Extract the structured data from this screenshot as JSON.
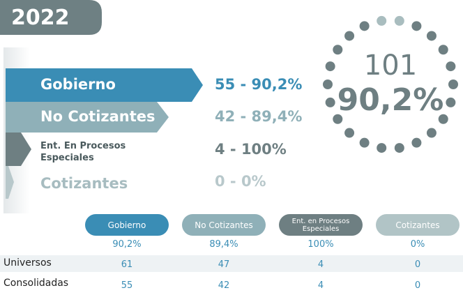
{
  "year": "2022",
  "categories": [
    {
      "label": "Gobierno",
      "value_text": "55 - 90,2%"
    },
    {
      "label": "No Cotizantes",
      "value_text": "42 - 89,4%"
    },
    {
      "label": "Ent. En Procesos Especiales",
      "value_text": "4 - 100%"
    },
    {
      "label": "Cotizantes",
      "value_text": "0 - 0%"
    }
  ],
  "ring": {
    "total": "101",
    "percent": "90,2%"
  },
  "table": {
    "headers": [
      "Gobierno",
      "No Cotizantes",
      "Ent. en Procesos Especiales",
      "Cotizantes"
    ],
    "percents": [
      "90,2%",
      "89,4%",
      "100%",
      "0%"
    ],
    "rows": [
      {
        "label": "Universos",
        "values": [
          61,
          47,
          4,
          0
        ]
      },
      {
        "label": "Consolidadas",
        "values": [
          55,
          42,
          4,
          0
        ]
      }
    ]
  }
}
